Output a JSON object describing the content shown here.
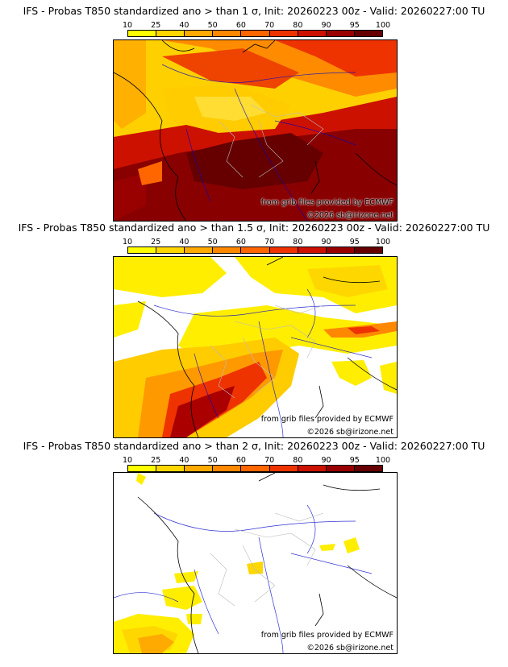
{
  "panels": [
    {
      "title": "IFS - Probas T850  standardized ano > than 1 σ, Init: 20260223 00z - Valid: 20260227:00 TU",
      "credit_source": "from grib files provided by ECMWF",
      "credit_copyright": "©2026 sb@irizone.net"
    },
    {
      "title": "IFS - Probas T850  standardized ano > than 1.5 σ, Init: 20260223 00z - Valid: 20260227:00 TU",
      "credit_source": "from grib files provided by ECMWF",
      "credit_copyright": "©2026 sb@irizone.net"
    },
    {
      "title": "IFS - Probas T850  standardized ano > than 2 σ, Init: 20260223 00z - Valid: 20260227:00 TU",
      "credit_source": "from grib files provided by ECMWF",
      "credit_copyright": "©2026 sb@irizone.net"
    }
  ],
  "legend": {
    "ticks": [
      "10",
      "25",
      "40",
      "50",
      "60",
      "70",
      "80",
      "90",
      "95",
      "100"
    ],
    "colors": [
      "#ffff00",
      "#ffd700",
      "#ffaa00",
      "#ff8800",
      "#ff6600",
      "#ee3300",
      "#cc1100",
      "#990000",
      "#660000"
    ]
  }
}
